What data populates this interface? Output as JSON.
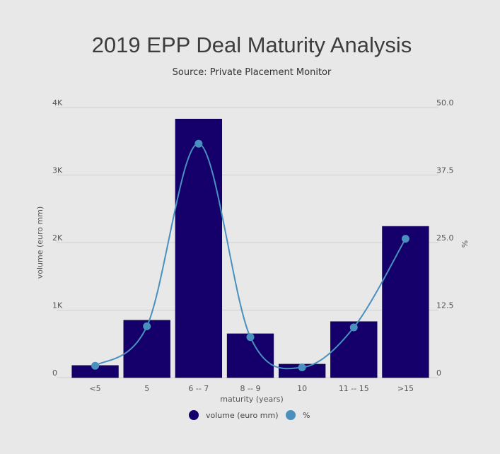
{
  "chart_data": {
    "type": "bar",
    "title": "2019 EPP Deal Maturity Analysis",
    "subtitle": "Source: Private Placement Monitor",
    "xlabel": "maturity (years)",
    "ylabel": "volume (euro mm)",
    "y2label": "%",
    "categories": [
      "<5",
      "5",
      "6 -- 7",
      "8 -- 9",
      "10",
      "11 -- 15",
      ">15"
    ],
    "ylim": [
      0,
      4000
    ],
    "y2lim": [
      0,
      50
    ],
    "yticks": [
      {
        "value": 0,
        "label": "0"
      },
      {
        "value": 1000,
        "label": "1K"
      },
      {
        "value": 2000,
        "label": "2K"
      },
      {
        "value": 3000,
        "label": "3K"
      },
      {
        "value": 4000,
        "label": "4K"
      }
    ],
    "y2ticks": [
      {
        "value": 0,
        "label": "0"
      },
      {
        "value": 12.5,
        "label": "12.5"
      },
      {
        "value": 25,
        "label": "25.0"
      },
      {
        "value": 37.5,
        "label": "37.5"
      },
      {
        "value": 50,
        "label": "50.0"
      }
    ],
    "grid": true,
    "legend_position": "bottom",
    "series": [
      {
        "name": "volume (euro mm)",
        "type": "bar",
        "axis": "left",
        "color": "#15006b",
        "values": [
          180,
          850,
          3830,
          650,
          200,
          830,
          2240
        ]
      },
      {
        "name": "%",
        "type": "line",
        "axis": "right",
        "color": "#4a90be",
        "values": [
          2.2,
          9.5,
          43.3,
          7.5,
          1.9,
          9.3,
          25.7
        ]
      }
    ]
  }
}
